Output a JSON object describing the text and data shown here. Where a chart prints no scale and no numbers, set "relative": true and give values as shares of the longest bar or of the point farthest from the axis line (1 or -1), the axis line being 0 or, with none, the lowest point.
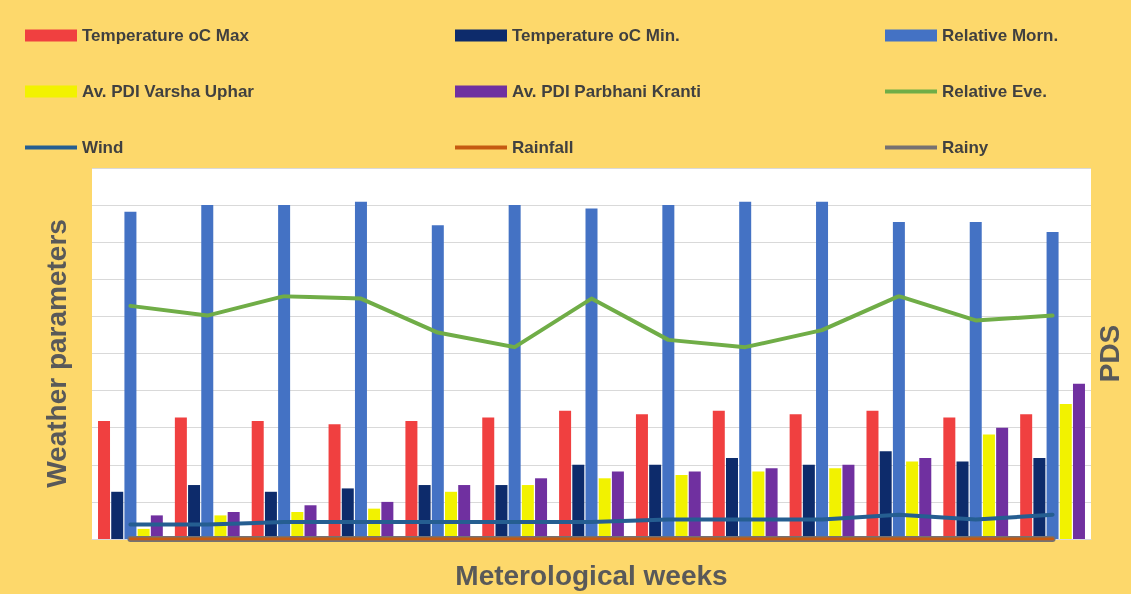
{
  "chart_data": [
    {
      "type": "bar",
      "relative": true,
      "xlabel": "Meterological weeks",
      "ylabel": "Weather parameters",
      "y2label": "PDS",
      "categories": [
        null,
        null,
        null,
        null,
        null,
        null,
        null,
        null,
        null,
        null,
        null,
        null,
        null
      ],
      "series": [
        {
          "name": "Temperature oC Max",
          "color": "#f04040",
          "values": [
            0.35,
            0.36,
            0.35,
            0.34,
            0.35,
            0.36,
            0.38,
            0.37,
            0.38,
            0.37,
            0.38,
            0.36,
            0.37
          ]
        },
        {
          "name": "Temperature oC Min.",
          "color": "#0d2b6b",
          "values": [
            0.14,
            0.16,
            0.14,
            0.15,
            0.16,
            0.16,
            0.22,
            0.22,
            0.24,
            0.22,
            0.26,
            0.23,
            0.24
          ]
        },
        {
          "name": "Relative Morn.",
          "color": "#4472c4",
          "values": [
            0.97,
            0.99,
            0.99,
            1,
            0.93,
            0.99,
            0.98,
            0.99,
            1,
            1,
            0.94,
            0.94,
            0.91
          ]
        },
        {
          "name": "Av. PDI Varsha Uphar",
          "color": "#f2f200",
          "values": [
            0.03,
            0.07,
            0.08,
            0.09,
            0.14,
            0.16,
            0.18,
            0.19,
            0.2,
            0.21,
            0.23,
            0.31,
            0.4
          ]
        },
        {
          "name": "Av. PDI Parbhani Kranti",
          "color": "#7030a0",
          "values": [
            0.07,
            0.08,
            0.1,
            0.11,
            0.16,
            0.18,
            0.2,
            0.2,
            0.21,
            0.22,
            0.24,
            0.33,
            0.46
          ]
        }
      ],
      "grid": "y",
      "legend": "top"
    },
    {
      "type": "line",
      "relative": true,
      "categories": [
        null,
        null,
        null,
        null,
        null,
        null,
        null,
        null,
        null,
        null,
        null,
        null,
        null
      ],
      "series": [
        {
          "name": "Relative Eve.",
          "color": "#70ad47",
          "values": [
            0.96,
            0.92,
            1,
            0.99,
            0.85,
            0.79,
            0.99,
            0.82,
            0.79,
            0.86,
            1,
            0.9,
            0.92
          ]
        },
        {
          "name": "Wind",
          "color": "#255e91",
          "values": [
            0.06,
            0.06,
            0.07,
            0.07,
            0.07,
            0.07,
            0.07,
            0.08,
            0.08,
            0.08,
            0.1,
            0.08,
            0.1
          ]
        },
        {
          "name": "Rainfall",
          "color": "#c55a11",
          "values": [
            0,
            0,
            0,
            0,
            0,
            0,
            0,
            0,
            0,
            0,
            0,
            0,
            0
          ]
        },
        {
          "name": "Rainy",
          "color": "#767171",
          "values": [
            0,
            0,
            0,
            0,
            0,
            0,
            0,
            0,
            0,
            0,
            0,
            0,
            0
          ]
        }
      ],
      "legend": "top",
      "marker": "none"
    }
  ]
}
